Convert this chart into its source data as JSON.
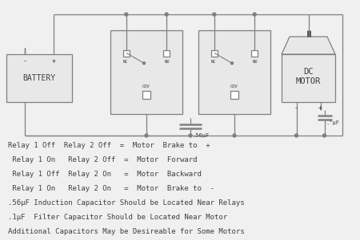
{
  "bg_color": "#f0f0f0",
  "line_color": "#808080",
  "text_color": "#404040",
  "lines": [
    "Relay 1 Off  Relay 2 Off  =  Motor  Brake to  +",
    " Relay 1 On   Relay 2 Off  =  Motor  Forward",
    " Relay 1 Off  Relay 2 On   =  Motor  Backward",
    " Relay 1 On   Relay 2 On   =  Motor  Brake to  -",
    ".56μF Induction Capacitor Should be Located Near Relays",
    ".1μF  Filter Capacitor Should be Located Near Motor",
    "Additional Capacitors May be Desireable for Some Motors"
  ],
  "font_size": 6.5
}
